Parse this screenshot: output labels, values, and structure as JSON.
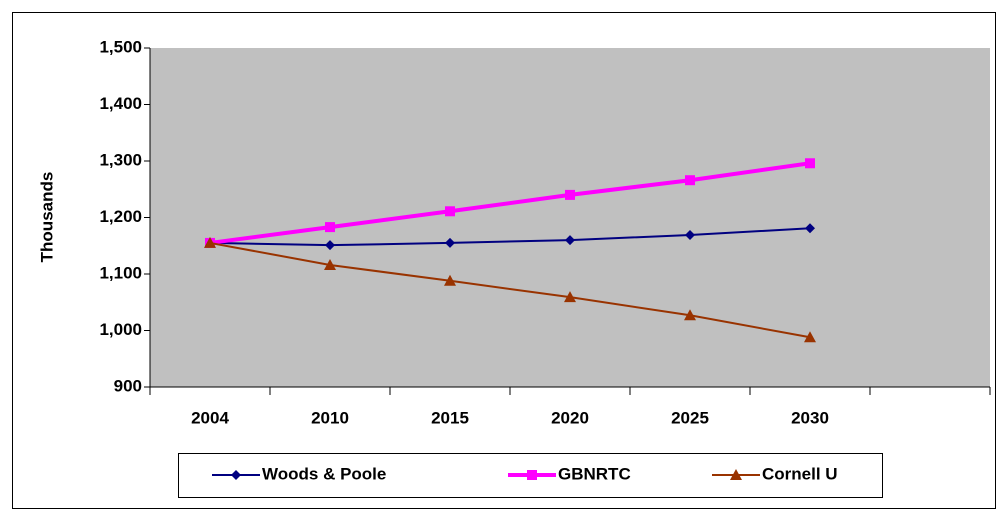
{
  "chart_data": {
    "type": "line",
    "y_label": "Thousands",
    "categories": [
      "2004",
      "2010",
      "2015",
      "2020",
      "2025",
      "2030",
      null
    ],
    "series": [
      {
        "name": "Woods & Poole",
        "color": "#000080",
        "marker": "diamond",
        "values": [
          1155,
          1151,
          1155,
          1160,
          1169,
          1181,
          null
        ]
      },
      {
        "name": "GBNRTC",
        "color": "#ff00ff",
        "marker": "square",
        "values": [
          1155,
          1183,
          1211,
          1240,
          1266,
          1296,
          null
        ]
      },
      {
        "name": "Cornell U",
        "color": "#993300",
        "marker": "triangle",
        "values": [
          1155,
          1116,
          1088,
          1059,
          1027,
          988,
          null
        ]
      }
    ],
    "ylim": [
      900,
      1500
    ],
    "yticks": [
      900,
      {
        "value": 1000,
        "label": "1,000"
      },
      {
        "value": 1100,
        "label": "1,100"
      },
      {
        "value": 1200,
        "label": "1,200"
      },
      {
        "value": 1300,
        "label": "1,300"
      },
      {
        "value": 1400,
        "label": "1,400"
      },
      {
        "value": 1500,
        "label": "1,500"
      }
    ],
    "legend": "bottom",
    "plot_background": "#c0c0c0"
  }
}
